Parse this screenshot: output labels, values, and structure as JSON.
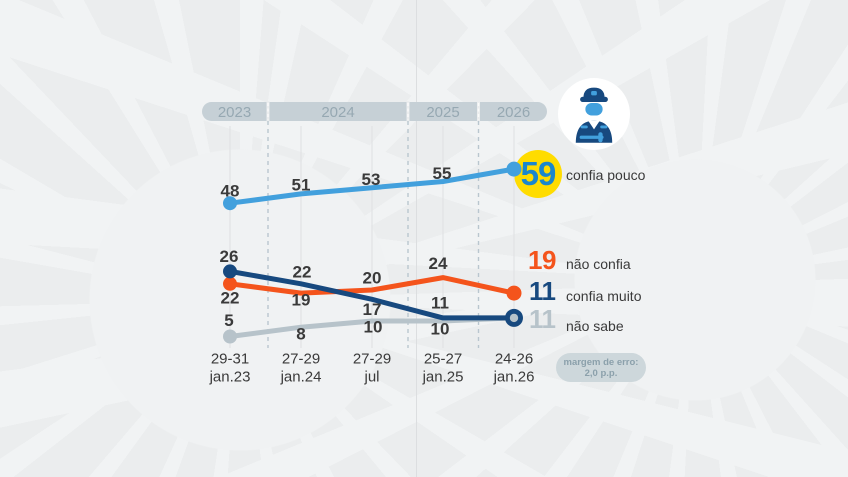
{
  "chart_data": {
    "type": "line",
    "title": "",
    "x_tick_labels": [
      {
        "line1": "29-31",
        "line2": "jan.23"
      },
      {
        "line1": "27-29",
        "line2": "jan.24"
      },
      {
        "line1": "27-29",
        "line2": "jul"
      },
      {
        "line1": "25-27",
        "line2": "jan.25"
      },
      {
        "line1": "24-26",
        "line2": "jan.26"
      }
    ],
    "year_bands": [
      {
        "label": "2023"
      },
      {
        "label": "2024"
      },
      {
        "label": "2025"
      },
      {
        "label": "2026"
      }
    ],
    "series": [
      {
        "name": "confia pouco",
        "color": "#42a0dd",
        "values": [
          48,
          51,
          53,
          55,
          59
        ]
      },
      {
        "name": "não confia",
        "color": "#f4541c",
        "values": [
          22,
          19,
          20,
          24,
          19
        ]
      },
      {
        "name": "confia muito",
        "color": "#17497f",
        "values": [
          26,
          22,
          17,
          11,
          11
        ]
      },
      {
        "name": "não sabe",
        "color": "#b7c3ca",
        "values": [
          5,
          8,
          10,
          10,
          11
        ]
      }
    ],
    "legend": [
      {
        "value": "59",
        "label": "confia pouco",
        "value_color": "#1b87cd"
      },
      {
        "value": "19",
        "label": "não confia",
        "value_color": "#f4541c"
      },
      {
        "value": "11",
        "label": "confia muito",
        "value_color": "#17497f"
      },
      {
        "value": "11",
        "label": "não sabe",
        "value_color": "#b7c3ca"
      }
    ],
    "highlight": {
      "value": "59",
      "badge_color": "#ffdc00",
      "text_color": "#1b87cd"
    },
    "footnote": {
      "line1": "margem de erro:",
      "line2": "2,0 p.p."
    },
    "icon": "police-officer",
    "colors": {
      "background": "#ebedee",
      "year_band": "#c6d0d6",
      "year_text": "#96a8b2",
      "value_label": "#3a3a3a",
      "gridline": "#e1e3e5",
      "separator_dash": "#b9c6cf"
    }
  }
}
